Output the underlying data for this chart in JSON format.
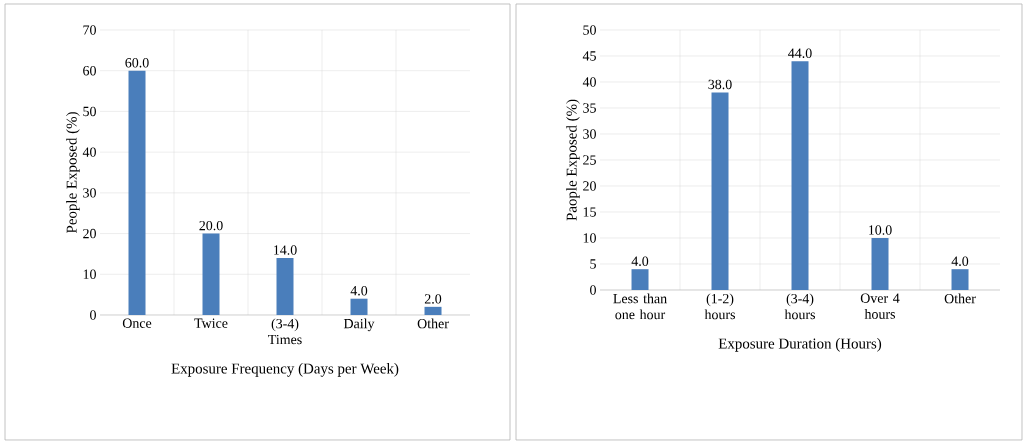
{
  "chart_data": [
    {
      "type": "bar",
      "categories": [
        "Once",
        "Twice",
        "(3-4) Times",
        "Daily",
        "Other"
      ],
      "values": [
        60,
        20,
        14,
        4,
        2
      ],
      "value_labels": [
        "60.0",
        "20.0",
        "14.0",
        "4.0",
        "2.0"
      ],
      "color": "#4a7ebb",
      "xlabel": "Exposure Frequency (Days per Week)",
      "ylabel": "People Exposed (%)",
      "ylim": [
        0,
        70
      ],
      "yticks": [
        0,
        10,
        20,
        30,
        40,
        50,
        60,
        70
      ],
      "grid": true
    },
    {
      "type": "bar",
      "categories": [
        "Less than one hour",
        "(1-2) hours",
        "(3-4) hours",
        "Over 4 hours",
        "Other"
      ],
      "values": [
        4,
        38,
        44,
        10,
        4
      ],
      "value_labels": [
        "4.0",
        "38.0",
        "44.0",
        "10.0",
        "4.0"
      ],
      "color": "#4a7ebb",
      "xlabel": "Exposure Duration (Hours)",
      "ylabel": "Paople Exposed (%)",
      "ylim": [
        0,
        50
      ],
      "yticks": [
        0,
        5,
        10,
        15,
        20,
        25,
        30,
        35,
        40,
        45,
        50
      ],
      "grid": true
    }
  ]
}
